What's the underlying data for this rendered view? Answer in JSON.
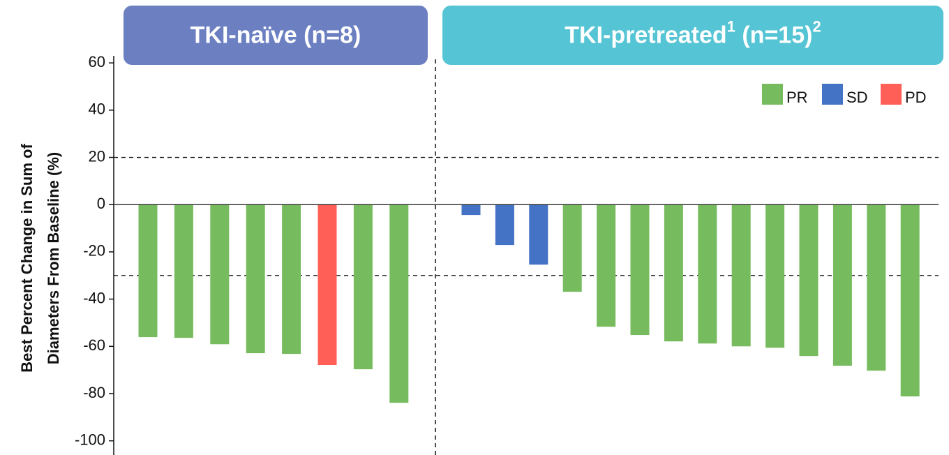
{
  "chart_data": {
    "type": "waterfall",
    "ylabel": [
      "Best Percent Change in Sum of",
      "Diameters From Baseline (%)"
    ],
    "ylim": [
      -106,
      63
    ],
    "yticks": [
      60,
      40,
      20,
      0,
      -20,
      -40,
      -60,
      -80,
      -100
    ],
    "reference_lines": [
      20,
      -30
    ],
    "legend": [
      {
        "name": "PR",
        "color": "#77bb5f"
      },
      {
        "name": "SD",
        "color": "#4472c4"
      },
      {
        "name": "PD",
        "color": "#ff5f57"
      }
    ],
    "groups": [
      {
        "label_parts": [
          "TKI-naïve (n=8)"
        ],
        "color": "#6b7fc1",
        "values": [
          -56.1,
          -56.4,
          -59.1,
          -62.9,
          -63.2,
          -67.9,
          -69.7,
          -83.9
        ],
        "response": [
          "PR",
          "PR",
          "PR",
          "PR",
          "PR",
          "PD",
          "PR",
          "PR"
        ]
      },
      {
        "label_parts": [
          "TKI-pretreated",
          "1",
          " (n=15)",
          "2"
        ],
        "color": "#55c4d4",
        "values": [
          -4.4,
          -17.1,
          -25.4,
          -36.9,
          -51.7,
          -55.2,
          -57.9,
          -58.8,
          -60.0,
          -60.6,
          -64.1,
          -68.2,
          -70.3,
          -81.2
        ],
        "response": [
          "SD",
          "SD",
          "SD",
          "PR",
          "PR",
          "PR",
          "PR",
          "PR",
          "PR",
          "PR",
          "PR",
          "PR",
          "PR",
          "PR"
        ]
      }
    ]
  }
}
